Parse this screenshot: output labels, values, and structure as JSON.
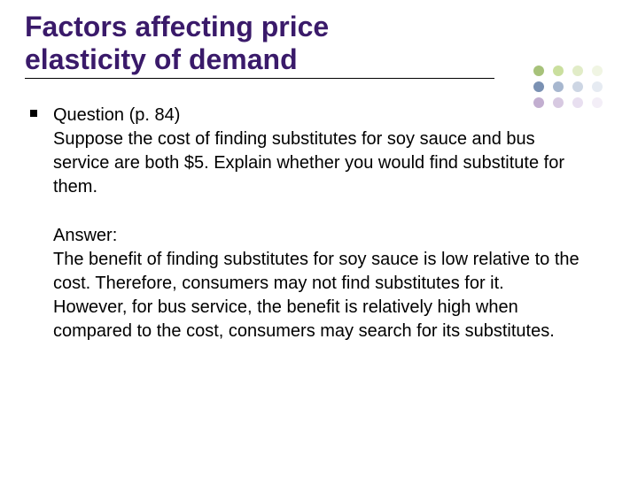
{
  "title": {
    "line1": "Factors affecting price",
    "line2": "elasticity of demand",
    "color": "#3a1a6a",
    "fontsize": 32
  },
  "content": {
    "fontsize": 20,
    "question_label": "Question (p. 84)",
    "question_body": "Suppose the cost of finding substitutes for soy sauce and bus service are both $5. Explain whether you would find substitute for them.",
    "answer_label": "Answer:",
    "answer_p1": "The benefit of finding substitutes for soy sauce is low relative to the cost. Therefore, consumers may not find substitutes for it.",
    "answer_p2": "However, for bus service, the benefit is relatively high when compared to the cost, consumers may search for its substitutes."
  },
  "decorative_dots": {
    "colors_row1": [
      "#a7c27a",
      "#cadf9e",
      "#e1ecc7",
      "#f0f5e3"
    ],
    "colors_row2": [
      "#7a91b3",
      "#a7b7cf",
      "#cdd6e4",
      "#e6ebf2"
    ],
    "colors_row3": [
      "#c2aed0",
      "#d7c9e1",
      "#e8dff0",
      "#f3eef7"
    ],
    "radius": 6,
    "hgap": 22,
    "vgap": 18
  }
}
